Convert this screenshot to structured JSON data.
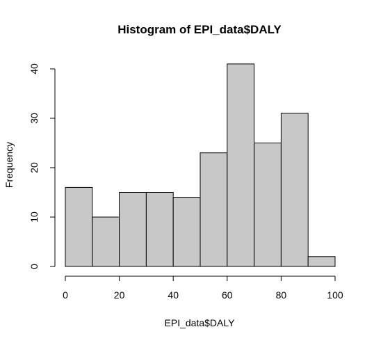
{
  "chart_data": {
    "type": "bar",
    "title": "Histogram of EPI_data$DALY",
    "xlabel": "EPI_data$DALY",
    "ylabel": "Frequency",
    "bins": [
      {
        "from": 0,
        "to": 10,
        "count": 16
      },
      {
        "from": 10,
        "to": 20,
        "count": 10
      },
      {
        "from": 20,
        "to": 30,
        "count": 15
      },
      {
        "from": 30,
        "to": 40,
        "count": 15
      },
      {
        "from": 40,
        "to": 50,
        "count": 14
      },
      {
        "from": 50,
        "to": 60,
        "count": 23
      },
      {
        "from": 60,
        "to": 70,
        "count": 41
      },
      {
        "from": 70,
        "to": 80,
        "count": 25
      },
      {
        "from": 80,
        "to": 90,
        "count": 31
      },
      {
        "from": 90,
        "to": 100,
        "count": 2
      }
    ],
    "xlim": [
      0,
      100
    ],
    "ylim": [
      0,
      41
    ],
    "xticks": [
      0,
      20,
      40,
      60,
      80,
      100
    ],
    "yticks": [
      0,
      10,
      20,
      30,
      40
    ],
    "bar_color": "#c8c8c8",
    "grid": false,
    "legend": "none"
  }
}
